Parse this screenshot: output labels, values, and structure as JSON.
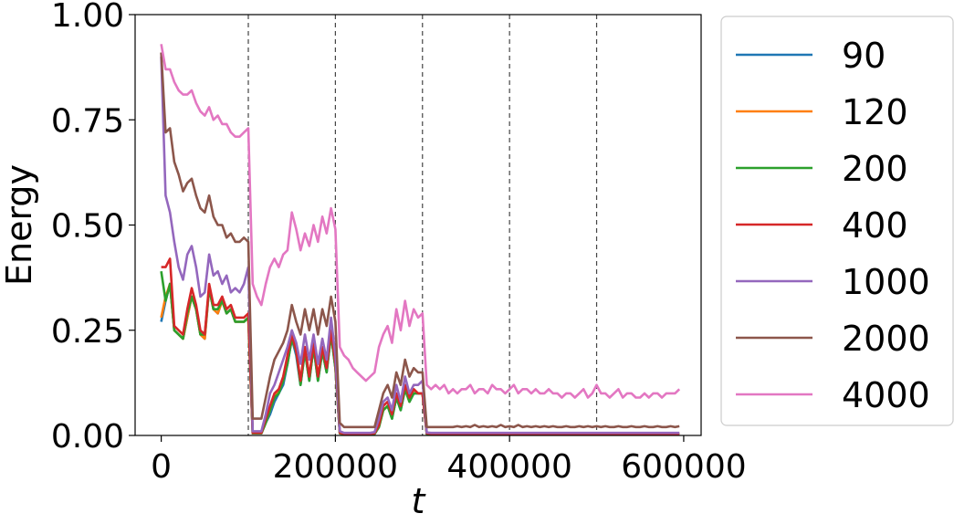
{
  "chart_data": {
    "type": "line",
    "xlabel": "t",
    "ylabel": "Energy",
    "xlim": [
      -30000,
      620000
    ],
    "ylim": [
      0,
      1
    ],
    "xticks": [
      0,
      200000,
      400000,
      600000
    ],
    "xtick_labels": [
      "0",
      "200000",
      "400000",
      "600000"
    ],
    "yticks": [
      0,
      0.25,
      0.5,
      0.75,
      1.0
    ],
    "ytick_labels": [
      "0.00",
      "0.25",
      "0.50",
      "0.75",
      "1.00"
    ],
    "vlines": [
      100000,
      200000,
      300000,
      400000,
      500000
    ],
    "grid": false,
    "legend_position": "outside-right",
    "x": [
      0,
      5000,
      10000,
      15000,
      20000,
      25000,
      30000,
      35000,
      40000,
      45000,
      50000,
      55000,
      60000,
      65000,
      70000,
      75000,
      80000,
      85000,
      90000,
      95000,
      100000,
      105000,
      110000,
      115000,
      120000,
      125000,
      130000,
      135000,
      140000,
      145000,
      150000,
      155000,
      160000,
      165000,
      170000,
      175000,
      180000,
      185000,
      190000,
      195000,
      200000,
      205000,
      210000,
      215000,
      220000,
      225000,
      230000,
      235000,
      240000,
      245000,
      250000,
      255000,
      260000,
      265000,
      270000,
      275000,
      280000,
      285000,
      290000,
      295000,
      300000,
      305000,
      310000,
      315000,
      320000,
      325000,
      330000,
      335000,
      340000,
      345000,
      350000,
      355000,
      360000,
      365000,
      370000,
      375000,
      380000,
      385000,
      390000,
      395000,
      400000,
      405000,
      410000,
      415000,
      420000,
      425000,
      430000,
      435000,
      440000,
      445000,
      450000,
      455000,
      460000,
      465000,
      470000,
      475000,
      480000,
      485000,
      490000,
      495000,
      500000,
      505000,
      510000,
      515000,
      520000,
      525000,
      530000,
      535000,
      540000,
      545000,
      550000,
      555000,
      560000,
      565000,
      570000,
      575000,
      580000,
      585000,
      590000,
      595000
    ],
    "series": [
      {
        "name": "90",
        "color": "#1f77b4",
        "values": [
          0.27,
          0.32,
          0.36,
          0.25,
          0.24,
          0.23,
          0.28,
          0.33,
          0.3,
          0.24,
          0.23,
          0.35,
          0.3,
          0.29,
          0.32,
          0.29,
          0.3,
          0.27,
          0.27,
          0.27,
          0.28,
          0.005,
          0.005,
          0.005,
          0.03,
          0.05,
          0.08,
          0.1,
          0.12,
          0.17,
          0.23,
          0.19,
          0.12,
          0.2,
          0.13,
          0.21,
          0.13,
          0.2,
          0.15,
          0.24,
          0.16,
          0.005,
          0.003,
          0.003,
          0.003,
          0.003,
          0.003,
          0.003,
          0.002,
          0.003,
          0.02,
          0.06,
          0.07,
          0.04,
          0.09,
          0.06,
          0.11,
          0.08,
          0.1,
          0.1,
          0.1,
          0.003,
          0.002,
          0.002,
          0.002,
          0.002,
          0.002,
          0.002,
          0.002,
          0.002,
          0.002,
          0.002,
          0.002,
          0.002,
          0.002,
          0.002,
          0.002,
          0.002,
          0.002,
          0.002,
          0.002,
          0.002,
          0.002,
          0.002,
          0.002,
          0.002,
          0.002,
          0.002,
          0.002,
          0.002,
          0.002,
          0.002,
          0.002,
          0.002,
          0.002,
          0.002,
          0.002,
          0.002,
          0.002,
          0.002,
          0.002,
          0.002,
          0.002,
          0.002,
          0.002,
          0.002,
          0.002,
          0.002,
          0.002,
          0.002,
          0.002,
          0.002,
          0.002,
          0.002,
          0.002,
          0.002,
          0.002,
          0.002,
          0.002,
          0.002
        ]
      },
      {
        "name": "120",
        "color": "#ff7f0e",
        "values": [
          0.28,
          0.33,
          0.36,
          0.25,
          0.24,
          0.23,
          0.28,
          0.33,
          0.3,
          0.24,
          0.23,
          0.35,
          0.3,
          0.29,
          0.32,
          0.29,
          0.3,
          0.27,
          0.27,
          0.27,
          0.28,
          0.005,
          0.005,
          0.005,
          0.03,
          0.06,
          0.09,
          0.11,
          0.13,
          0.18,
          0.23,
          0.2,
          0.13,
          0.21,
          0.14,
          0.21,
          0.14,
          0.2,
          0.16,
          0.25,
          0.17,
          0.005,
          0.003,
          0.003,
          0.003,
          0.003,
          0.003,
          0.003,
          0.003,
          0.004,
          0.02,
          0.06,
          0.07,
          0.05,
          0.09,
          0.07,
          0.11,
          0.08,
          0.11,
          0.1,
          0.1,
          0.004,
          0.003,
          0.003,
          0.003,
          0.003,
          0.003,
          0.003,
          0.003,
          0.003,
          0.003,
          0.003,
          0.003,
          0.003,
          0.003,
          0.003,
          0.003,
          0.003,
          0.003,
          0.003,
          0.003,
          0.003,
          0.003,
          0.003,
          0.003,
          0.003,
          0.003,
          0.003,
          0.003,
          0.003,
          0.003,
          0.003,
          0.003,
          0.003,
          0.003,
          0.003,
          0.003,
          0.003,
          0.003,
          0.003,
          0.003,
          0.003,
          0.003,
          0.003,
          0.003,
          0.003,
          0.003,
          0.003,
          0.003,
          0.003,
          0.003,
          0.003,
          0.003,
          0.003,
          0.003,
          0.003,
          0.003,
          0.003,
          0.003,
          0.003
        ]
      },
      {
        "name": "200",
        "color": "#2ca02c",
        "values": [
          0.39,
          0.32,
          0.36,
          0.25,
          0.24,
          0.23,
          0.29,
          0.33,
          0.3,
          0.24,
          0.24,
          0.35,
          0.3,
          0.3,
          0.32,
          0.29,
          0.3,
          0.27,
          0.27,
          0.27,
          0.28,
          0.005,
          0.005,
          0.005,
          0.03,
          0.06,
          0.09,
          0.1,
          0.13,
          0.17,
          0.23,
          0.2,
          0.12,
          0.2,
          0.13,
          0.21,
          0.13,
          0.2,
          0.15,
          0.24,
          0.16,
          0.005,
          0.003,
          0.003,
          0.003,
          0.003,
          0.003,
          0.003,
          0.003,
          0.004,
          0.02,
          0.06,
          0.07,
          0.04,
          0.09,
          0.06,
          0.11,
          0.08,
          0.1,
          0.1,
          0.1,
          0.004,
          0.003,
          0.003,
          0.003,
          0.003,
          0.003,
          0.003,
          0.003,
          0.003,
          0.003,
          0.003,
          0.003,
          0.003,
          0.003,
          0.003,
          0.003,
          0.003,
          0.003,
          0.003,
          0.003,
          0.003,
          0.003,
          0.003,
          0.003,
          0.003,
          0.003,
          0.003,
          0.003,
          0.003,
          0.003,
          0.003,
          0.003,
          0.003,
          0.003,
          0.003,
          0.003,
          0.003,
          0.003,
          0.003,
          0.003,
          0.003,
          0.003,
          0.003,
          0.003,
          0.003,
          0.003,
          0.003,
          0.003,
          0.003,
          0.003,
          0.003,
          0.003,
          0.003,
          0.003,
          0.003,
          0.003,
          0.003,
          0.003,
          0.003
        ]
      },
      {
        "name": "400",
        "color": "#d62728",
        "values": [
          0.4,
          0.4,
          0.42,
          0.26,
          0.25,
          0.24,
          0.3,
          0.35,
          0.31,
          0.25,
          0.24,
          0.36,
          0.31,
          0.31,
          0.33,
          0.3,
          0.31,
          0.28,
          0.28,
          0.28,
          0.29,
          0.006,
          0.006,
          0.006,
          0.04,
          0.07,
          0.1,
          0.11,
          0.14,
          0.19,
          0.24,
          0.2,
          0.13,
          0.21,
          0.14,
          0.22,
          0.14,
          0.21,
          0.16,
          0.25,
          0.17,
          0.006,
          0.004,
          0.004,
          0.004,
          0.004,
          0.004,
          0.004,
          0.004,
          0.005,
          0.025,
          0.07,
          0.08,
          0.05,
          0.1,
          0.07,
          0.12,
          0.09,
          0.11,
          0.1,
          0.1,
          0.005,
          0.004,
          0.004,
          0.004,
          0.004,
          0.004,
          0.004,
          0.004,
          0.004,
          0.004,
          0.004,
          0.004,
          0.004,
          0.004,
          0.004,
          0.004,
          0.004,
          0.004,
          0.004,
          0.004,
          0.004,
          0.004,
          0.004,
          0.004,
          0.004,
          0.004,
          0.004,
          0.004,
          0.004,
          0.004,
          0.004,
          0.004,
          0.004,
          0.004,
          0.004,
          0.004,
          0.004,
          0.004,
          0.004,
          0.004,
          0.004,
          0.004,
          0.004,
          0.004,
          0.004,
          0.004,
          0.004,
          0.004,
          0.004,
          0.004,
          0.004,
          0.004,
          0.004,
          0.004,
          0.004,
          0.004,
          0.004,
          0.004,
          0.004
        ]
      },
      {
        "name": "1000",
        "color": "#9467bd",
        "values": [
          0.9,
          0.57,
          0.53,
          0.46,
          0.4,
          0.37,
          0.43,
          0.45,
          0.4,
          0.33,
          0.34,
          0.43,
          0.38,
          0.39,
          0.36,
          0.38,
          0.34,
          0.35,
          0.34,
          0.36,
          0.4,
          0.01,
          0.01,
          0.01,
          0.05,
          0.1,
          0.12,
          0.15,
          0.18,
          0.21,
          0.25,
          0.22,
          0.17,
          0.24,
          0.18,
          0.24,
          0.17,
          0.23,
          0.18,
          0.28,
          0.19,
          0.01,
          0.006,
          0.006,
          0.006,
          0.006,
          0.006,
          0.006,
          0.006,
          0.008,
          0.04,
          0.08,
          0.09,
          0.06,
          0.12,
          0.08,
          0.14,
          0.1,
          0.12,
          0.12,
          0.13,
          0.007,
          0.006,
          0.006,
          0.006,
          0.006,
          0.006,
          0.006,
          0.006,
          0.006,
          0.006,
          0.006,
          0.006,
          0.006,
          0.006,
          0.006,
          0.006,
          0.006,
          0.006,
          0.006,
          0.006,
          0.006,
          0.006,
          0.006,
          0.006,
          0.006,
          0.006,
          0.006,
          0.006,
          0.006,
          0.006,
          0.006,
          0.006,
          0.006,
          0.006,
          0.006,
          0.006,
          0.006,
          0.006,
          0.006,
          0.006,
          0.006,
          0.006,
          0.006,
          0.006,
          0.006,
          0.006,
          0.006,
          0.006,
          0.006,
          0.006,
          0.006,
          0.006,
          0.006,
          0.006,
          0.006,
          0.006,
          0.006,
          0.006,
          0.006
        ]
      },
      {
        "name": "2000",
        "color": "#8c564b",
        "values": [
          0.91,
          0.72,
          0.73,
          0.65,
          0.62,
          0.58,
          0.6,
          0.61,
          0.57,
          0.54,
          0.53,
          0.57,
          0.52,
          0.5,
          0.5,
          0.47,
          0.48,
          0.46,
          0.46,
          0.47,
          0.46,
          0.04,
          0.04,
          0.04,
          0.09,
          0.14,
          0.18,
          0.2,
          0.22,
          0.25,
          0.31,
          0.27,
          0.24,
          0.3,
          0.25,
          0.3,
          0.24,
          0.3,
          0.26,
          0.33,
          0.27,
          0.03,
          0.02,
          0.02,
          0.02,
          0.02,
          0.02,
          0.02,
          0.02,
          0.02,
          0.06,
          0.1,
          0.12,
          0.09,
          0.15,
          0.12,
          0.18,
          0.14,
          0.16,
          0.15,
          0.15,
          0.02,
          0.02,
          0.02,
          0.02,
          0.02,
          0.02,
          0.02,
          0.022,
          0.02,
          0.022,
          0.02,
          0.025,
          0.02,
          0.022,
          0.02,
          0.022,
          0.02,
          0.025,
          0.02,
          0.022,
          0.02,
          0.025,
          0.02,
          0.022,
          0.02,
          0.022,
          0.02,
          0.022,
          0.02,
          0.022,
          0.02,
          0.02,
          0.022,
          0.02,
          0.02,
          0.022,
          0.02,
          0.022,
          0.02,
          0.022,
          0.02,
          0.022,
          0.02,
          0.02,
          0.022,
          0.02,
          0.02,
          0.022,
          0.02,
          0.02,
          0.022,
          0.02,
          0.02,
          0.022,
          0.02,
          0.02,
          0.022,
          0.02,
          0.022
        ]
      },
      {
        "name": "4000",
        "color": "#e377c2",
        "values": [
          0.93,
          0.87,
          0.87,
          0.84,
          0.82,
          0.81,
          0.81,
          0.82,
          0.79,
          0.77,
          0.76,
          0.78,
          0.75,
          0.76,
          0.74,
          0.74,
          0.72,
          0.71,
          0.71,
          0.72,
          0.73,
          0.36,
          0.33,
          0.31,
          0.36,
          0.4,
          0.42,
          0.4,
          0.43,
          0.44,
          0.53,
          0.49,
          0.44,
          0.48,
          0.45,
          0.5,
          0.46,
          0.52,
          0.48,
          0.54,
          0.49,
          0.21,
          0.19,
          0.18,
          0.16,
          0.15,
          0.14,
          0.13,
          0.14,
          0.15,
          0.21,
          0.24,
          0.26,
          0.22,
          0.3,
          0.25,
          0.32,
          0.26,
          0.3,
          0.28,
          0.29,
          0.12,
          0.11,
          0.12,
          0.11,
          0.12,
          0.1,
          0.11,
          0.1,
          0.11,
          0.11,
          0.12,
          0.1,
          0.11,
          0.11,
          0.1,
          0.12,
          0.11,
          0.11,
          0.1,
          0.11,
          0.12,
          0.1,
          0.11,
          0.11,
          0.1,
          0.11,
          0.1,
          0.1,
          0.11,
          0.1,
          0.1,
          0.09,
          0.1,
          0.1,
          0.09,
          0.1,
          0.11,
          0.09,
          0.1,
          0.12,
          0.1,
          0.1,
          0.09,
          0.1,
          0.11,
          0.09,
          0.1,
          0.1,
          0.09,
          0.09,
          0.1,
          0.09,
          0.1,
          0.1,
          0.09,
          0.1,
          0.1,
          0.1,
          0.11
        ]
      }
    ]
  }
}
